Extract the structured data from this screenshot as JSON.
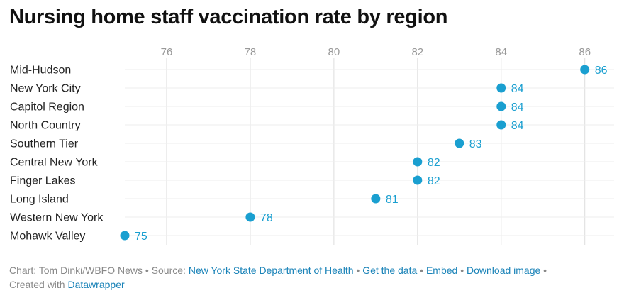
{
  "title": "Nursing home staff vaccination rate by region",
  "colors": {
    "dot": "#1a9fd0",
    "grid": "#dddddd",
    "row_line": "#eeeeee",
    "link": "#1a83b8"
  },
  "chart_data": {
    "type": "scatter",
    "orientation": "horizontal-dot",
    "title": "Nursing home staff vaccination rate by region",
    "categories": [
      "Mid-Hudson",
      "New York City",
      "Capitol Region",
      "North Country",
      "Southern Tier",
      "Central New York",
      "Finger Lakes",
      "Long Island",
      "Western New York",
      "Mohawk Valley"
    ],
    "values": [
      86,
      84,
      84,
      84,
      83,
      82,
      82,
      81,
      78,
      75
    ],
    "xticks": [
      76,
      78,
      80,
      82,
      84,
      86
    ],
    "xlim": [
      75,
      86.7
    ],
    "grid": true,
    "tick_position": "top",
    "data_labels": true
  },
  "footer": {
    "chart_credit": "Chart: Tom Dinki/WBFO News",
    "sep": " • ",
    "source_prefix": "Source: ",
    "source_link": "New York State Department of Health",
    "get_data": "Get the data",
    "embed": "Embed",
    "download": "Download image",
    "created_prefix": "Created with ",
    "created_link": "Datawrapper"
  }
}
